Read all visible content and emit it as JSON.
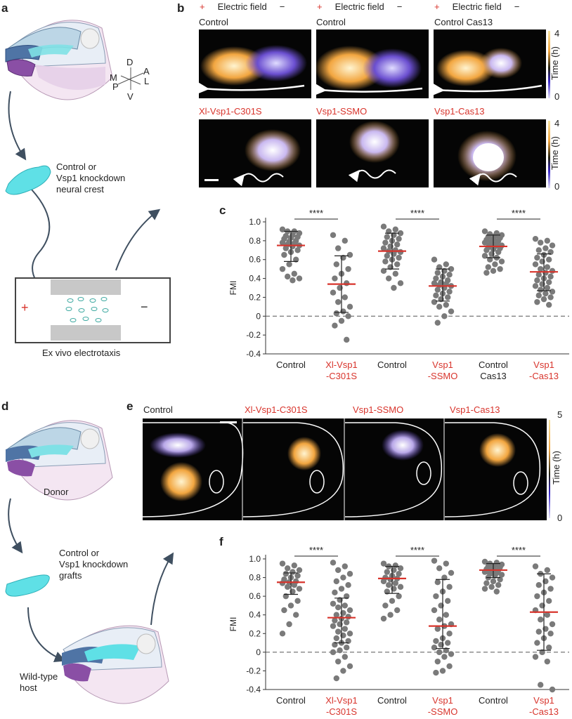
{
  "panel_labels": {
    "a": "a",
    "b": "b",
    "c": "c",
    "d": "d",
    "e": "e",
    "f": "f"
  },
  "panel_a": {
    "axes": {
      "d": "D",
      "a": "A",
      "m": "M",
      "l": "L",
      "p": "P",
      "v": "V"
    },
    "crest_label_line1": "Control or",
    "crest_label_line2": "Vsp1 knockdown",
    "crest_label_line3": "neural crest",
    "chamber_caption": "Ex vivo electrotaxis",
    "plus": "+",
    "minus": "−"
  },
  "panel_b": {
    "field_plus": "+",
    "field_label": "Electric field",
    "field_minus": "−",
    "top_titles": [
      "Control",
      "Control",
      "Control Cas13"
    ],
    "bottom_titles": [
      "Xl-Vsp1-C301S",
      "Vsp1-SSMO",
      "Vsp1-Cas13"
    ],
    "colorbar": {
      "label": "Time (h)",
      "max": "4",
      "min": "0"
    }
  },
  "panel_d": {
    "donor": "Donor",
    "graft_line1": "Control or",
    "graft_line2": "Vsp1 knockdown",
    "graft_line3": "grafts",
    "host_line1": "Wild-type",
    "host_line2": "host"
  },
  "panel_e": {
    "titles": [
      "Control",
      "Xl-Vsp1-C301S",
      "Vsp1-SSMO",
      "Vsp1-Cas13"
    ],
    "colorbar": {
      "label": "Time (h)",
      "max": "5",
      "min": "0"
    }
  },
  "colors": {
    "red": "#d8342c",
    "dot": "#7a7a7a",
    "dark": "#222222",
    "cyan": "#5fe0e6",
    "violet": "#6b4fd0",
    "orange": "#f2a640"
  },
  "chart_data": [
    {
      "type": "scatter",
      "panel": "c",
      "ylabel": "FMI",
      "ylim": [
        -0.4,
        1.0
      ],
      "yticks": [
        "-0.4",
        "-0.2",
        "0",
        "0.2",
        "0.4",
        "0.6",
        "0.8",
        "1.0"
      ],
      "categories": [
        [
          "Control"
        ],
        [
          "Xl-Vsp1",
          "-C301S"
        ],
        [
          "Control"
        ],
        [
          "Vsp1",
          "-SSMO"
        ],
        [
          "Control",
          "Cas13"
        ],
        [
          "Vsp1",
          "-Cas13"
        ]
      ],
      "category_red": [
        false,
        true,
        false,
        true,
        false,
        true
      ],
      "significance": [
        "****",
        "****",
        "****"
      ],
      "groups": [
        {
          "mean": 0.75,
          "sd_low": 0.58,
          "sd_high": 0.9,
          "values": [
            0.92,
            0.9,
            0.9,
            0.88,
            0.86,
            0.85,
            0.84,
            0.83,
            0.82,
            0.8,
            0.79,
            0.78,
            0.77,
            0.76,
            0.75,
            0.74,
            0.72,
            0.7,
            0.68,
            0.65,
            0.6,
            0.55,
            0.5,
            0.45,
            0.42,
            0.4,
            0.38
          ]
        },
        {
          "mean": 0.34,
          "sd_low": 0.04,
          "sd_high": 0.64,
          "values": [
            0.86,
            0.8,
            0.72,
            0.65,
            0.62,
            0.55,
            0.5,
            0.45,
            0.4,
            0.35,
            0.3,
            0.25,
            0.2,
            0.15,
            0.1,
            0.05,
            0.03,
            0.0,
            -0.05,
            -0.1,
            -0.25
          ]
        },
        {
          "mean": 0.69,
          "sd_low": 0.5,
          "sd_high": 0.88,
          "values": [
            0.95,
            0.92,
            0.9,
            0.88,
            0.86,
            0.84,
            0.82,
            0.8,
            0.78,
            0.76,
            0.74,
            0.72,
            0.7,
            0.69,
            0.68,
            0.66,
            0.64,
            0.62,
            0.6,
            0.58,
            0.55,
            0.52,
            0.48,
            0.45,
            0.4,
            0.35,
            0.3
          ]
        },
        {
          "mean": 0.32,
          "sd_low": 0.16,
          "sd_high": 0.5,
          "values": [
            0.6,
            0.55,
            0.52,
            0.5,
            0.48,
            0.46,
            0.44,
            0.42,
            0.4,
            0.38,
            0.36,
            0.35,
            0.34,
            0.33,
            0.32,
            0.3,
            0.28,
            0.26,
            0.24,
            0.22,
            0.2,
            0.18,
            0.15,
            0.12,
            0.1,
            0.05,
            0.0,
            -0.07
          ]
        },
        {
          "mean": 0.74,
          "sd_low": 0.62,
          "sd_high": 0.86,
          "values": [
            0.9,
            0.88,
            0.87,
            0.86,
            0.85,
            0.84,
            0.83,
            0.82,
            0.81,
            0.8,
            0.79,
            0.78,
            0.77,
            0.76,
            0.75,
            0.74,
            0.73,
            0.72,
            0.71,
            0.7,
            0.68,
            0.66,
            0.64,
            0.62,
            0.6,
            0.58,
            0.55,
            0.52,
            0.5,
            0.48,
            0.46
          ]
        },
        {
          "mean": 0.47,
          "sd_low": 0.27,
          "sd_high": 0.66,
          "values": [
            0.82,
            0.8,
            0.78,
            0.75,
            0.72,
            0.7,
            0.68,
            0.65,
            0.62,
            0.6,
            0.58,
            0.55,
            0.52,
            0.5,
            0.48,
            0.46,
            0.44,
            0.42,
            0.4,
            0.38,
            0.36,
            0.34,
            0.32,
            0.3,
            0.28,
            0.26,
            0.24,
            0.22,
            0.2,
            0.18,
            0.15,
            0.12
          ]
        }
      ]
    },
    {
      "type": "scatter",
      "panel": "f",
      "ylabel": "FMI",
      "ylim": [
        -0.4,
        1.0
      ],
      "yticks": [
        "-0.4",
        "-0.2",
        "0",
        "0.2",
        "0.4",
        "0.6",
        "0.8",
        "1.0"
      ],
      "categories": [
        [
          "Control"
        ],
        [
          "Xl-Vsp1",
          "-C301S"
        ],
        [
          "Control"
        ],
        [
          "Vsp1",
          "-SSMO"
        ],
        [
          "Control"
        ],
        [
          "Vsp1",
          "-Cas13"
        ]
      ],
      "category_red": [
        false,
        true,
        false,
        true,
        false,
        true
      ],
      "significance": [
        "****",
        "****",
        "****"
      ],
      "groups": [
        {
          "mean": 0.75,
          "sd_low": 0.62,
          "sd_high": 0.85,
          "values": [
            0.95,
            0.93,
            0.9,
            0.88,
            0.86,
            0.84,
            0.82,
            0.8,
            0.78,
            0.76,
            0.75,
            0.74,
            0.72,
            0.7,
            0.68,
            0.65,
            0.6,
            0.55,
            0.5,
            0.45,
            0.4,
            0.3,
            0.2
          ]
        },
        {
          "mean": 0.37,
          "sd_low": 0.1,
          "sd_high": 0.58,
          "values": [
            0.96,
            0.92,
            0.88,
            0.84,
            0.8,
            0.76,
            0.72,
            0.68,
            0.64,
            0.6,
            0.56,
            0.52,
            0.5,
            0.48,
            0.45,
            0.42,
            0.4,
            0.38,
            0.36,
            0.34,
            0.32,
            0.3,
            0.28,
            0.25,
            0.22,
            0.2,
            0.18,
            0.15,
            0.12,
            0.1,
            0.08,
            0.05,
            0.02,
            0.0,
            -0.05,
            -0.1,
            -0.15,
            -0.2,
            -0.28
          ]
        },
        {
          "mean": 0.79,
          "sd_low": 0.63,
          "sd_high": 0.92,
          "values": [
            0.95,
            0.93,
            0.92,
            0.9,
            0.88,
            0.86,
            0.84,
            0.82,
            0.8,
            0.79,
            0.78,
            0.76,
            0.74,
            0.72,
            0.7,
            0.68,
            0.65,
            0.6,
            0.55,
            0.5,
            0.45,
            0.4,
            0.36
          ]
        },
        {
          "mean": 0.28,
          "sd_low": 0.04,
          "sd_high": 0.78,
          "values": [
            0.98,
            0.95,
            0.9,
            0.85,
            0.8,
            0.75,
            0.7,
            0.65,
            0.6,
            0.55,
            0.5,
            0.45,
            0.4,
            0.35,
            0.3,
            0.28,
            0.25,
            0.2,
            0.15,
            0.12,
            0.1,
            0.08,
            0.05,
            0.02,
            0.0,
            -0.02,
            -0.05,
            -0.1,
            -0.15,
            -0.2,
            -0.22
          ]
        },
        {
          "mean": 0.88,
          "sd_low": 0.8,
          "sd_high": 0.95,
          "values": [
            0.97,
            0.96,
            0.95,
            0.94,
            0.93,
            0.92,
            0.91,
            0.9,
            0.89,
            0.88,
            0.87,
            0.86,
            0.85,
            0.84,
            0.83,
            0.82,
            0.8,
            0.78,
            0.76,
            0.74,
            0.72,
            0.7,
            0.68,
            0.65
          ]
        },
        {
          "mean": 0.43,
          "sd_low": 0.02,
          "sd_high": 0.84,
          "values": [
            0.92,
            0.88,
            0.84,
            0.8,
            0.76,
            0.72,
            0.68,
            0.64,
            0.6,
            0.55,
            0.5,
            0.45,
            0.4,
            0.35,
            0.3,
            0.25,
            0.22,
            0.2,
            0.15,
            0.1,
            0.05,
            0.0,
            -0.05,
            -0.1,
            -0.35,
            -0.4
          ]
        }
      ]
    }
  ]
}
